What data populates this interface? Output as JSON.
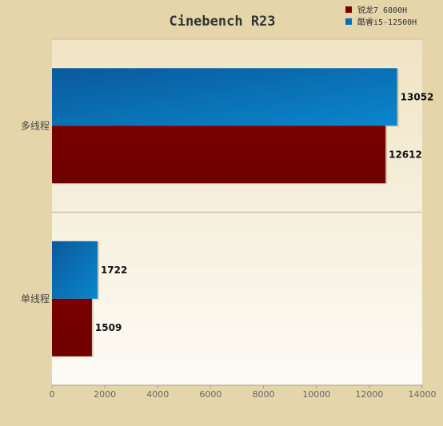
{
  "chart_data": {
    "type": "bar",
    "orientation": "horizontal",
    "title": "Cinebench R23",
    "categories": [
      "多线程",
      "单线程"
    ],
    "series": [
      {
        "name": "酷睿i5-12500H",
        "values": [
          13052,
          1722
        ],
        "color": "#0070b8"
      },
      {
        "name": "锐龙7 6800H",
        "values": [
          12612,
          1509
        ],
        "color": "#7a0000"
      }
    ],
    "legend_order": [
      1,
      0
    ],
    "xlim": [
      0,
      14000
    ],
    "xticks": [
      0,
      2000,
      4000,
      6000,
      8000,
      10000,
      12000,
      14000
    ],
    "legend_position": "top-right",
    "grid": false,
    "colors": {
      "frame": "#e4d6aa",
      "plot_top": "#f0e4c4",
      "plot_bottom": "#fdfbf6"
    }
  }
}
